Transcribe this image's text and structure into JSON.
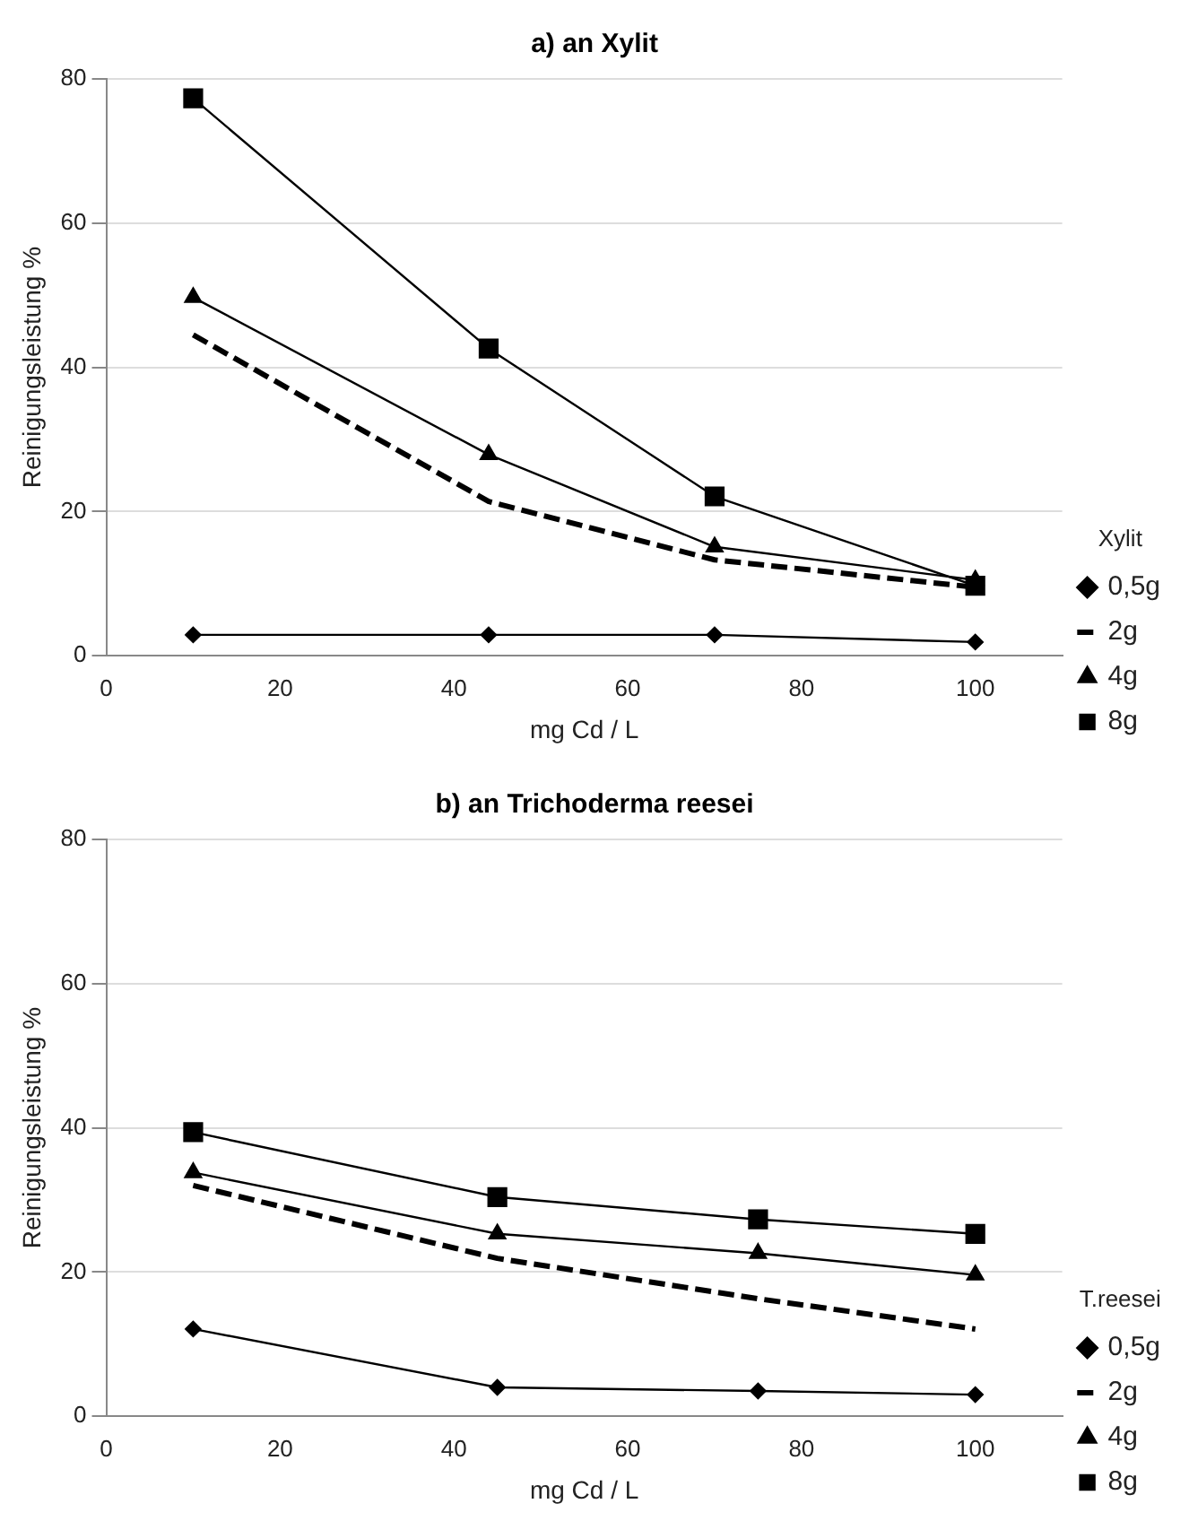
{
  "chart_data": [
    {
      "type": "line",
      "title": "a) an Xylit",
      "xlabel": "mg Cd / L",
      "ylabel": "Reinigungsleistung %",
      "legend_title": "Xylit",
      "legend": "bottom right",
      "grid": "y",
      "xlim": [
        0,
        110
      ],
      "xticks": [
        0,
        20,
        40,
        60,
        80,
        100
      ],
      "ylim": [
        0,
        80
      ],
      "yticks": [
        0,
        20,
        40,
        60,
        80
      ],
      "series": [
        {
          "name": "0,5g",
          "color": "#000000",
          "marker": "diamond",
          "line_style": "solid",
          "x": [
            10,
            44,
            70,
            100
          ],
          "values": [
            2.9,
            2.9,
            2.9,
            1.9
          ]
        },
        {
          "name": "2g",
          "color": "#000000",
          "marker": "none",
          "line_style": "dashed",
          "x": [
            10,
            44,
            70,
            100
          ],
          "values": [
            44.5,
            21.4,
            13.3,
            9.5
          ]
        },
        {
          "name": "4g",
          "color": "#000000",
          "marker": "triangle",
          "line_style": "solid",
          "x": [
            10,
            44,
            70,
            100
          ],
          "values": [
            49.7,
            27.9,
            15.1,
            10.5
          ]
        },
        {
          "name": "8g",
          "color": "#000000",
          "marker": "square",
          "line_style": "solid",
          "x": [
            10,
            44,
            70,
            100
          ],
          "values": [
            77.3,
            42.6,
            22.1,
            9.7
          ]
        }
      ]
    },
    {
      "type": "line",
      "title": "b) an Trichoderma reesei",
      "xlabel": "mg Cd / L",
      "ylabel": "Reinigungsleistung %",
      "legend_title": "T.reesei",
      "legend": "bottom right",
      "grid": "y",
      "xlim": [
        0,
        110
      ],
      "xticks": [
        0,
        20,
        40,
        60,
        80,
        100
      ],
      "ylim": [
        0,
        80
      ],
      "yticks": [
        0,
        20,
        40,
        60,
        80
      ],
      "series": [
        {
          "name": "0,5g",
          "color": "#000000",
          "marker": "diamond",
          "line_style": "solid",
          "x": [
            10,
            45,
            75,
            100
          ],
          "values": [
            12.1,
            4,
            3.5,
            3
          ]
        },
        {
          "name": "2g",
          "color": "#000000",
          "marker": "none",
          "line_style": "dashed",
          "x": [
            10,
            45,
            75,
            100
          ],
          "values": [
            32,
            21.9,
            16.3,
            12.1
          ]
        },
        {
          "name": "4g",
          "color": "#000000",
          "marker": "triangle",
          "line_style": "solid",
          "x": [
            10,
            45,
            75,
            100
          ],
          "values": [
            33.8,
            25.3,
            22.6,
            19.6
          ]
        },
        {
          "name": "8g",
          "color": "#000000",
          "marker": "square",
          "line_style": "solid",
          "x": [
            10,
            45,
            75,
            100
          ],
          "values": [
            39.4,
            30.4,
            27.3,
            25.3
          ]
        }
      ]
    }
  ]
}
